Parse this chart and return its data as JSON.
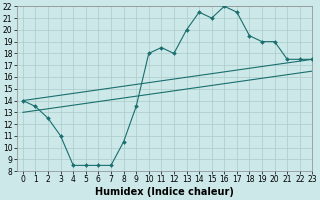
{
  "title": "",
  "xlabel": "Humidex (Indice chaleur)",
  "xlim": [
    -0.5,
    23
  ],
  "ylim": [
    8,
    22
  ],
  "xticks": [
    0,
    1,
    2,
    3,
    4,
    5,
    6,
    7,
    8,
    9,
    10,
    11,
    12,
    13,
    14,
    15,
    16,
    17,
    18,
    19,
    20,
    21,
    22,
    23
  ],
  "yticks": [
    8,
    9,
    10,
    11,
    12,
    13,
    14,
    15,
    16,
    17,
    18,
    19,
    20,
    21,
    22
  ],
  "bg_color": "#cce8e8",
  "line_color": "#1a6e6e",
  "grid_color": "#aacccc",
  "curve1_x": [
    0,
    1,
    2,
    3,
    4,
    5,
    6,
    7,
    8,
    9,
    10,
    11,
    12,
    13,
    14,
    15,
    16,
    17,
    18,
    19,
    20,
    21,
    22,
    23
  ],
  "curve1_y": [
    14,
    13.5,
    12.5,
    11,
    8.5,
    8.5,
    8.5,
    8.5,
    10.5,
    13.5,
    18,
    18.5,
    18,
    20,
    21.5,
    21,
    22,
    21.5,
    19.5,
    19,
    19,
    17.5,
    17.5,
    17.5
  ],
  "curve2_x": [
    0,
    23
  ],
  "curve2_y": [
    14.0,
    17.5
  ],
  "curve3_x": [
    0,
    23
  ],
  "curve3_y": [
    13.0,
    16.5
  ],
  "marker": "D",
  "markersize": 2.0,
  "linewidth": 0.8,
  "tick_fontsize": 5.5,
  "xlabel_fontsize": 7
}
